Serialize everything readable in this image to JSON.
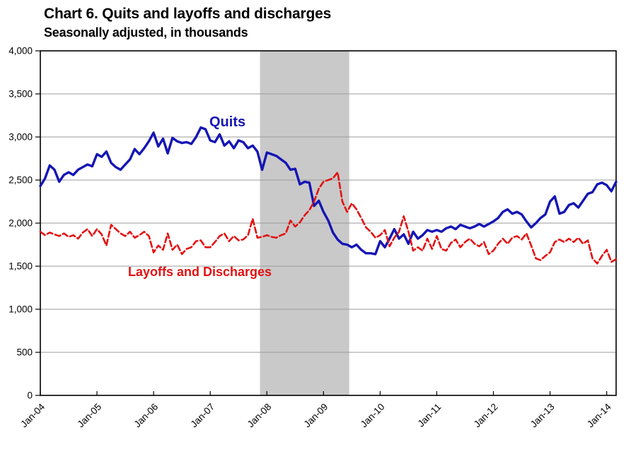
{
  "header": {
    "title": "Chart 6. Quits and layoffs and discharges",
    "subtitle": "Seasonally adjusted, in thousands"
  },
  "chart_data": {
    "type": "line",
    "title": "Chart 6. Quits and layoffs and discharges",
    "subtitle": "Seasonally adjusted, in thousands",
    "x_unit": "month",
    "x_start": "Jan-04",
    "x_end": "Mar-14",
    "x_tick_labels": [
      "Jan-04",
      "Jan-05",
      "Jan-06",
      "Jan-07",
      "Jan-08",
      "Jan-09",
      "Jan-10",
      "Jan-11",
      "Jan-12",
      "Jan-13",
      "Jan-14"
    ],
    "x_tick_indices": [
      0,
      12,
      24,
      36,
      48,
      60,
      72,
      84,
      96,
      108,
      120
    ],
    "y_axis": {
      "min": 0,
      "max": 4000,
      "step": 500,
      "tick_labels": [
        "0",
        "500",
        "1,000",
        "1,500",
        "2,000",
        "2,500",
        "3,000",
        "3,500",
        "4,000"
      ]
    },
    "grid": "horizontal-only",
    "legend_position": "inline-labels",
    "recession_band": {
      "start_label": "Dec-07",
      "end_label": "Jun-09",
      "start_index": 47,
      "end_index": 65,
      "color": "#c9c9c9"
    },
    "colors": {
      "quits_line": "#1515b4",
      "layoffs_line": "#e31212",
      "gridline": "#9b9b9b",
      "axis": "#000000"
    },
    "series": [
      {
        "name": "Quits",
        "label_text": "Quits",
        "color": "#1515b4",
        "style": "solid",
        "values": [
          2430,
          2520,
          2670,
          2620,
          2480,
          2560,
          2590,
          2560,
          2620,
          2650,
          2680,
          2660,
          2800,
          2770,
          2830,
          2700,
          2650,
          2620,
          2680,
          2740,
          2860,
          2800,
          2870,
          2950,
          3050,
          2890,
          2980,
          2810,
          2990,
          2950,
          2930,
          2940,
          2920,
          3000,
          3110,
          3090,
          2960,
          2940,
          3030,
          2900,
          2950,
          2870,
          2960,
          2940,
          2870,
          2900,
          2830,
          2620,
          2820,
          2800,
          2780,
          2740,
          2700,
          2620,
          2630,
          2450,
          2480,
          2470,
          2200,
          2260,
          2130,
          2030,
          1890,
          1810,
          1760,
          1750,
          1720,
          1750,
          1690,
          1650,
          1650,
          1640,
          1790,
          1720,
          1820,
          1930,
          1820,
          1870,
          1760,
          1900,
          1820,
          1860,
          1920,
          1900,
          1920,
          1900,
          1940,
          1960,
          1930,
          1980,
          1960,
          1940,
          1960,
          1990,
          1960,
          1990,
          2020,
          2060,
          2130,
          2160,
          2110,
          2130,
          2100,
          2020,
          1950,
          2000,
          2060,
          2100,
          2250,
          2310,
          2110,
          2130,
          2210,
          2230,
          2180,
          2260,
          2340,
          2360,
          2450,
          2470,
          2440,
          2370,
          2480
        ]
      },
      {
        "name": "Layoffs and Discharges",
        "label_text": "Layoffs and Discharges",
        "color": "#e31212",
        "style": "dashed",
        "values": [
          1900,
          1860,
          1890,
          1870,
          1850,
          1880,
          1840,
          1860,
          1820,
          1890,
          1930,
          1850,
          1930,
          1870,
          1740,
          1980,
          1930,
          1880,
          1850,
          1900,
          1830,
          1860,
          1900,
          1850,
          1660,
          1740,
          1690,
          1880,
          1690,
          1750,
          1640,
          1700,
          1720,
          1790,
          1800,
          1720,
          1720,
          1780,
          1850,
          1880,
          1790,
          1850,
          1800,
          1810,
          1860,
          2050,
          1830,
          1840,
          1860,
          1840,
          1830,
          1860,
          1880,
          2030,
          1960,
          2010,
          2090,
          2150,
          2250,
          2400,
          2480,
          2500,
          2520,
          2590,
          2250,
          2130,
          2230,
          2160,
          2060,
          1950,
          1900,
          1830,
          1860,
          1920,
          1730,
          1830,
          1900,
          2080,
          1900,
          1680,
          1720,
          1680,
          1820,
          1700,
          1850,
          1700,
          1680,
          1770,
          1810,
          1720,
          1780,
          1820,
          1760,
          1730,
          1780,
          1640,
          1680,
          1760,
          1820,
          1760,
          1830,
          1850,
          1810,
          1880,
          1740,
          1590,
          1570,
          1620,
          1660,
          1780,
          1810,
          1780,
          1820,
          1780,
          1830,
          1760,
          1800,
          1590,
          1530,
          1620,
          1690,
          1550,
          1580
        ]
      }
    ]
  }
}
